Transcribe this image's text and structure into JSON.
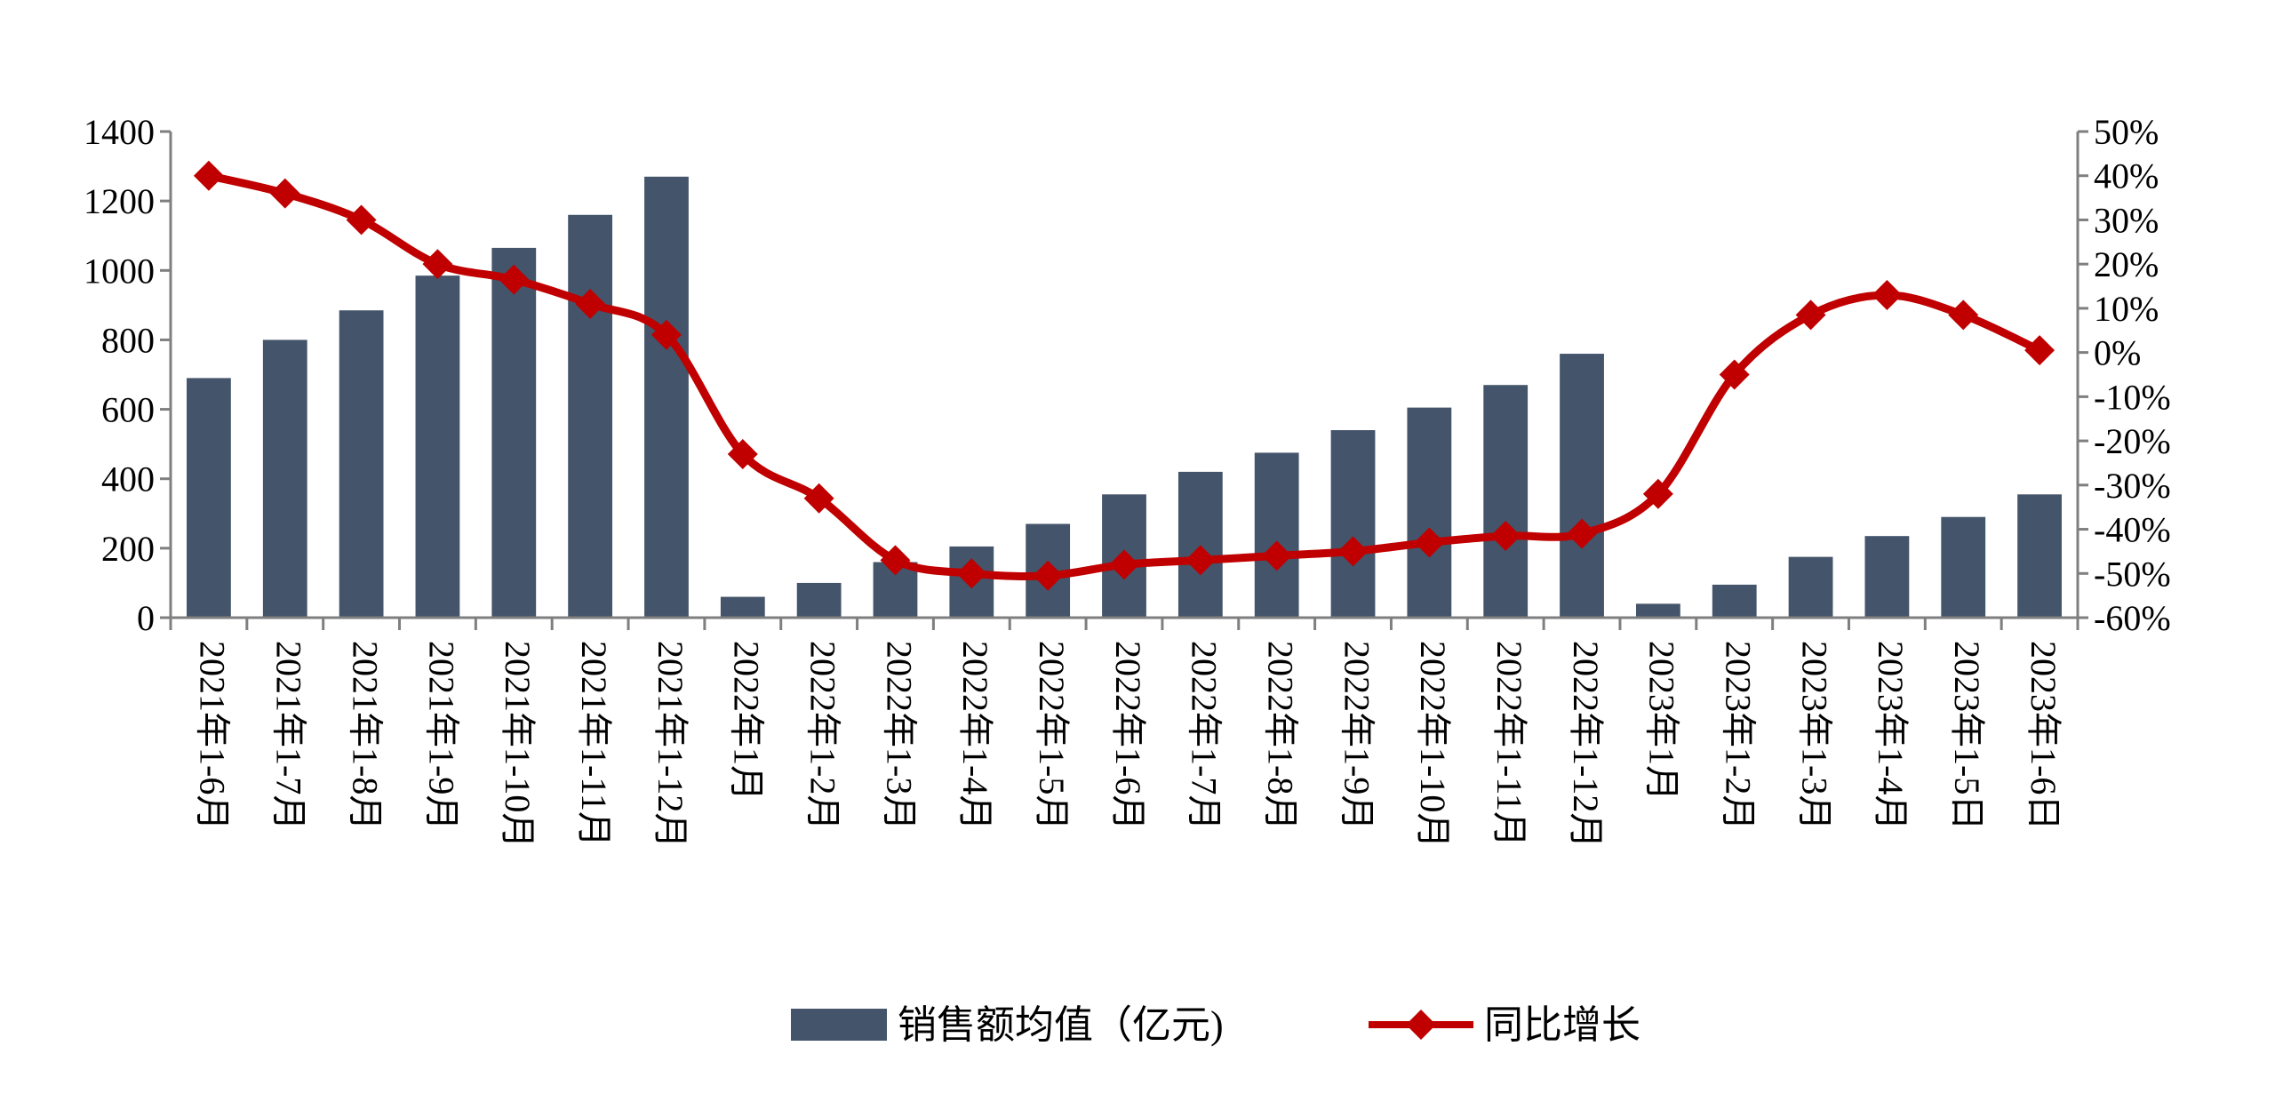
{
  "chart_data": {
    "type": "bar",
    "categories": [
      "2021年1-6月",
      "2021年1-7月",
      "2021年1-8月",
      "2021年1-9月",
      "2021年1-10月",
      "2021年1-11月",
      "2021年1-12月",
      "2022年1月",
      "2022年1-2月",
      "2022年1-3月",
      "2022年1-4月",
      "2022年1-5月",
      "2022年1-6月",
      "2022年1-7月",
      "2022年1-8月",
      "2022年1-9月",
      "2022年1-10月",
      "2022年1-11月",
      "2022年1-12月",
      "2023年1月",
      "2023年1-2月",
      "2023年1-3月",
      "2023年1-4月",
      "2023年1-5日",
      "2023年1-6日"
    ],
    "series": [
      {
        "name": "销售额均值（亿元)",
        "type": "bar",
        "axis": "left",
        "color": "#44546a",
        "values": [
          690,
          800,
          885,
          985,
          1065,
          1160,
          1270,
          60,
          100,
          160,
          205,
          270,
          355,
          420,
          475,
          540,
          605,
          670,
          760,
          40,
          95,
          175,
          235,
          290,
          355
        ]
      },
      {
        "name": "同比增长",
        "type": "line",
        "axis": "right",
        "color": "#c00000",
        "values": [
          40,
          36,
          30,
          20,
          16.5,
          11,
          4,
          -23,
          -33,
          -47,
          -50,
          -50.5,
          -48,
          -47,
          -46,
          -45,
          -43,
          -41.5,
          -41,
          -32,
          -5,
          8.5,
          13,
          8.5,
          0.5
        ]
      }
    ],
    "y_left": {
      "ylim": [
        0,
        1400
      ],
      "ticks": [
        0,
        200,
        400,
        600,
        800,
        1000,
        1200,
        1400
      ]
    },
    "y_right": {
      "ylim": [
        -60,
        50
      ],
      "ticks": [
        -60,
        -50,
        -40,
        -30,
        -20,
        -10,
        0,
        10,
        20,
        30,
        40,
        50
      ],
      "tick_labels": [
        "-60%",
        "-50%",
        "-40%",
        "-30%",
        "-20%",
        "-10%",
        "0%",
        "10%",
        "20%",
        "30%",
        "40%",
        "50%"
      ]
    },
    "grid": false,
    "legend_position": "bottom-center",
    "legend": [
      {
        "label": "销售额均值（亿元)",
        "color": "#44546a",
        "marker": "bar"
      },
      {
        "label": "同比增长",
        "color": "#c00000",
        "marker": "line-diamond"
      }
    ]
  }
}
